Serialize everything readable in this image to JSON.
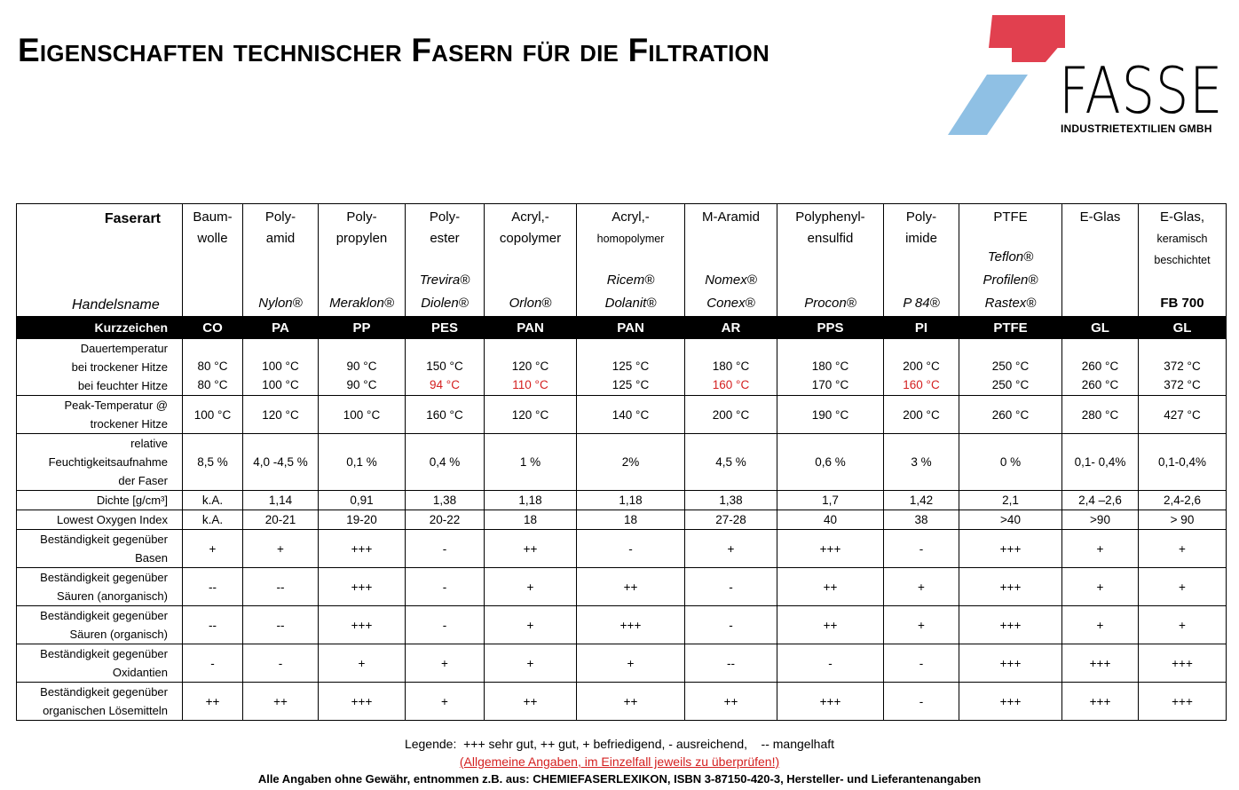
{
  "header": {
    "title": "Eigenschaften technischer Fasern für die Filtration",
    "logo": {
      "name": "FASSE",
      "subtitle": "INDUSTRIETEXTILIEN GMBH"
    }
  },
  "table": {
    "fiber_label": "Faserart",
    "trade_label": "Handelsname",
    "columns": [
      {
        "name": [
          "Baum-",
          "wolle"
        ],
        "note": [],
        "trade_names": []
      },
      {
        "name": [
          "Poly-",
          "amid"
        ],
        "note": [],
        "trade_names": [
          "Nylon®"
        ]
      },
      {
        "name": [
          "Poly-",
          "propylen"
        ],
        "note": [],
        "trade_names": [
          "Meraklon®"
        ]
      },
      {
        "name": [
          "Poly-",
          "ester"
        ],
        "note": [],
        "trade_names": [
          "Trevira®",
          "Diolen®"
        ]
      },
      {
        "name": [
          "Acryl,-",
          "copolymer"
        ],
        "note": [],
        "trade_names": [
          "Orlon®"
        ]
      },
      {
        "name": [
          "Acryl,-"
        ],
        "note": [
          "homopolymer"
        ],
        "trade_names": [
          "Ricem®",
          "Dolanit®"
        ]
      },
      {
        "name": [
          "M-Aramid"
        ],
        "note": [],
        "trade_names": [
          "Nomex®",
          "Conex®"
        ]
      },
      {
        "name": [
          "Polyphenyl-",
          "ensulfid"
        ],
        "note": [],
        "trade_names": [
          "Procon®"
        ]
      },
      {
        "name": [
          "Poly-",
          "imide"
        ],
        "note": [],
        "trade_names": [
          "P 84®"
        ]
      },
      {
        "name": [
          "PTFE"
        ],
        "note": [],
        "trade_names": [
          "Teflon®",
          "Profilen®",
          "Rastex®"
        ]
      },
      {
        "name": [
          "E-Glas"
        ],
        "note": [],
        "trade_names": []
      },
      {
        "name": [
          "E-Glas,"
        ],
        "note": [
          "keramisch",
          "beschichtet"
        ],
        "trade_names": [
          "FB 700"
        ]
      }
    ],
    "code_label": "Kurzzeichen",
    "codes": [
      "CO",
      "PA",
      "PP",
      "PES",
      "PAN",
      "PAN",
      "AR",
      "PPS",
      "PI",
      "PTFE",
      "GL",
      "GL"
    ],
    "temperature": {
      "label": [
        "Dauertemperatur",
        "bei trockener Hitze",
        "bei feuchter Hitze"
      ],
      "dry": [
        "80 °C",
        "100 °C",
        "90 °C",
        "150 °C",
        "120 °C",
        "125 °C",
        "180 °C",
        "180 °C",
        "200 °C",
        "250 °C",
        "260 °C",
        "372 °C"
      ],
      "wet": [
        "80 °C",
        "100 °C",
        "90 °C",
        "94 °C",
        "110 °C",
        "125 °C",
        "160 °C",
        "170 °C",
        "160 °C",
        "250 °C",
        "260 °C",
        "372 °C"
      ],
      "wet_highlighted": [
        false,
        false,
        false,
        true,
        true,
        false,
        true,
        false,
        true,
        false,
        false,
        false
      ],
      "highlight_color": "#d42020"
    },
    "rows": [
      {
        "label": [
          "Peak-Temperatur @",
          "trockener Hitze"
        ],
        "values": [
          "100 °C",
          "120 °C",
          "100 °C",
          "160 °C",
          "120 °C",
          "140 °C",
          "200 °C",
          "190 °C",
          "200 °C",
          "260 °C",
          "280 °C",
          "427 °C"
        ]
      },
      {
        "label": [
          "relative",
          "Feuchtigkeitsaufnahme",
          "der Faser"
        ],
        "values": [
          "8,5 %",
          "4,0 -4,5 %",
          "0,1 %",
          "0,4 %",
          "1 %",
          "2%",
          "4,5 %",
          "0,6 %",
          "3 %",
          "0 %",
          "0,1- 0,4%",
          "0,1-0,4%"
        ]
      },
      {
        "label": [
          "Dichte  [g/cm³]"
        ],
        "values": [
          "k.A.",
          "1,14",
          "0,91",
          "1,38",
          "1,18",
          "1,18",
          "1,38",
          "1,7",
          "1,42",
          "2,1",
          "2,4 –2,6",
          "2,4-2,6"
        ]
      },
      {
        "label": [
          "Lowest Oxygen Index"
        ],
        "values": [
          "k.A.",
          "20-21",
          "19-20",
          "20-22",
          "18",
          "18",
          "27-28",
          "40",
          "38",
          ">40",
          ">90",
          "> 90"
        ]
      },
      {
        "label": [
          "Beständigkeit gegenüber",
          "Basen"
        ],
        "values": [
          "+",
          "+",
          "+++",
          "-",
          "++",
          "-",
          "+",
          "+++",
          "-",
          "+++",
          "+",
          "+"
        ]
      },
      {
        "label": [
          "Beständigkeit gegenüber",
          "Säuren (anorganisch)"
        ],
        "values": [
          "--",
          "--",
          "+++",
          "-",
          "+",
          "++",
          "-",
          "++",
          "+",
          "+++",
          "+",
          "+"
        ]
      },
      {
        "label": [
          "Beständigkeit gegenüber",
          "Säuren (organisch)"
        ],
        "values": [
          "--",
          "--",
          "+++",
          "-",
          "+",
          "+++",
          "-",
          "++",
          "+",
          "+++",
          "+",
          "+"
        ]
      },
      {
        "label": [
          "Beständigkeit gegenüber",
          "Oxidantien"
        ],
        "values": [
          "-",
          "-",
          "+",
          "+",
          "+",
          "+",
          "--",
          "-",
          "-",
          "+++",
          "+++",
          "+++"
        ]
      },
      {
        "label": [
          "Beständigkeit gegenüber",
          "organischen Lösemitteln"
        ],
        "values": [
          "++",
          "++",
          "+++",
          "+",
          "++",
          "++",
          "++",
          "+++",
          "-",
          "+++",
          "+++",
          "+++"
        ]
      }
    ]
  },
  "footer": {
    "legend": "Legende:  +++ sehr gut, ++ gut, + befriedigend, - ausreichend,    -- mangelhaft",
    "note": "(Allgemeine Angaben, im Einzelfall jeweils zu überprüfen!)",
    "source": "Alle Angaben ohne Gewähr, entnommen z.B. aus: CHEMIEFASERLEXIKON, ISBN 3-87150-420-3, Hersteller- und Lieferantenangaben"
  }
}
